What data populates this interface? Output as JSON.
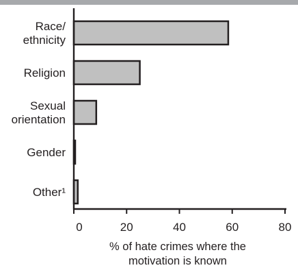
{
  "chart_data": {
    "type": "bar",
    "orientation": "horizontal",
    "categories": [
      [
        "Race/",
        "ethnicity"
      ],
      [
        "Religion"
      ],
      [
        "Sexual",
        "orientation"
      ],
      [
        "Gender"
      ],
      [
        "Other¹"
      ]
    ],
    "values": [
      58.5,
      25,
      8.5,
      0.5,
      1.5
    ],
    "xlim": [
      0,
      80
    ],
    "xticks": [
      "0",
      "20",
      "40",
      "60",
      "80"
    ],
    "xlabel": [
      "% of hate crimes where the",
      "motivation is known"
    ],
    "bar_color": "#c0c0c0",
    "edge_color": "#231f20",
    "band_color": "#a7a9ac",
    "grid": false
  }
}
